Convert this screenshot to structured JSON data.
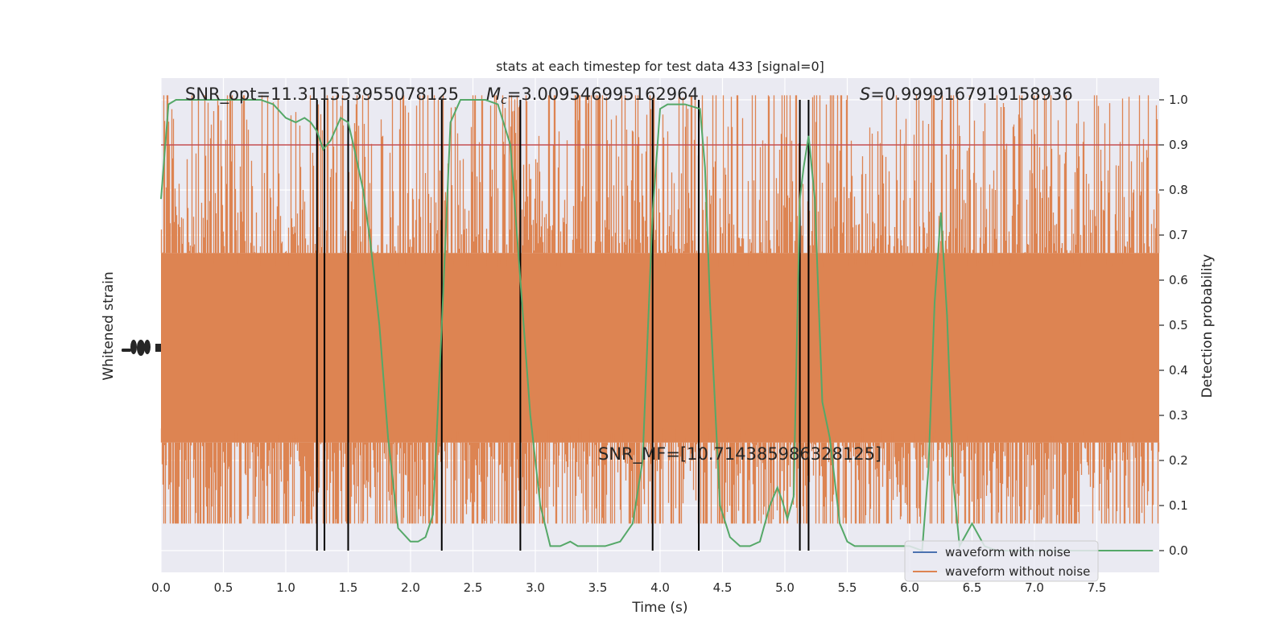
{
  "chart_data": {
    "type": "line",
    "title": "stats at each timestep for test data 433 [signal=0]",
    "xlabel": "Time (s)",
    "ylabel_left": "Whitened strain",
    "ylabel_right": "Detection probability",
    "xlim": [
      0.0,
      8.0
    ],
    "ylim_right": [
      -0.05,
      1.05
    ],
    "grid": true,
    "background": "#EAEAF2",
    "x_ticks": [
      "0.0",
      "0.5",
      "1.0",
      "1.5",
      "2.0",
      "2.5",
      "3.0",
      "3.5",
      "4.0",
      "4.5",
      "5.0",
      "5.5",
      "6.0",
      "6.5",
      "7.0",
      "7.5"
    ],
    "y_ticks_right": [
      "0.0",
      "0.1",
      "0.2",
      "0.3",
      "0.4",
      "0.5",
      "0.6",
      "0.7",
      "0.8",
      "0.9",
      "1.0"
    ],
    "annotations": {
      "snr_opt": "SNR_opt=11.311553955078125",
      "mc_symbol": "M",
      "mc_sub": "c",
      "mc_value": "=3.009546995162964",
      "s_symbol": "S",
      "s_value": "=0.9999167919158936",
      "snr_mf": "SNR_MF=[10.714385986328125]"
    },
    "threshold": {
      "value": 0.9,
      "color": "#C44E52"
    },
    "vertical_lines": [
      1.25,
      1.31,
      1.5,
      2.25,
      2.88,
      3.94,
      4.31,
      5.12,
      5.19
    ],
    "series": [
      {
        "name": "waveform with noise",
        "color": "#4C72B0"
      },
      {
        "name": "waveform without noise",
        "color": "#DD8452"
      }
    ],
    "strain_band": {
      "center": 0.45,
      "core_half_width": 0.21,
      "spike_min": 0.06,
      "spike_max": 1.01
    },
    "probability": {
      "color": "#55A868",
      "x": [
        0.0,
        0.06,
        0.12,
        0.2,
        0.3,
        0.5,
        0.8,
        0.9,
        1.0,
        1.08,
        1.15,
        1.2,
        1.25,
        1.3,
        1.36,
        1.44,
        1.5,
        1.55,
        1.62,
        1.68,
        1.75,
        1.82,
        1.9,
        2.0,
        2.06,
        2.12,
        2.18,
        2.25,
        2.32,
        2.4,
        2.5,
        2.6,
        2.7,
        2.8,
        2.88,
        2.96,
        3.04,
        3.12,
        3.2,
        3.28,
        3.34,
        3.45,
        3.56,
        3.68,
        3.78,
        3.86,
        3.94,
        4.0,
        4.06,
        4.2,
        4.32,
        4.36,
        4.4,
        4.48,
        4.56,
        4.64,
        4.72,
        4.8,
        4.88,
        4.94,
        4.98,
        5.02,
        5.07,
        5.12,
        5.15,
        5.19,
        5.24,
        5.3,
        5.36,
        5.44,
        5.5,
        5.56,
        5.62,
        5.7,
        5.8,
        5.9,
        6.0,
        6.1,
        6.15,
        6.2,
        6.25,
        6.3,
        6.35,
        6.4,
        6.5,
        6.6,
        6.7,
        6.8,
        6.9,
        7.0,
        7.2,
        7.4,
        7.6,
        7.8,
        7.95
      ],
      "y": [
        0.78,
        0.99,
        1.0,
        1.0,
        1.0,
        1.0,
        1.0,
        0.99,
        0.96,
        0.95,
        0.96,
        0.95,
        0.93,
        0.89,
        0.91,
        0.96,
        0.95,
        0.89,
        0.8,
        0.68,
        0.5,
        0.25,
        0.05,
        0.02,
        0.02,
        0.03,
        0.08,
        0.5,
        0.95,
        1.0,
        1.0,
        1.0,
        0.99,
        0.9,
        0.6,
        0.3,
        0.1,
        0.01,
        0.01,
        0.02,
        0.01,
        0.01,
        0.01,
        0.02,
        0.06,
        0.2,
        0.75,
        0.98,
        0.99,
        0.99,
        0.98,
        0.85,
        0.55,
        0.1,
        0.03,
        0.01,
        0.01,
        0.02,
        0.1,
        0.14,
        0.11,
        0.07,
        0.12,
        0.78,
        0.85,
        0.92,
        0.78,
        0.33,
        0.25,
        0.06,
        0.02,
        0.01,
        0.01,
        0.01,
        0.01,
        0.01,
        0.01,
        0.0,
        0.18,
        0.55,
        0.75,
        0.52,
        0.15,
        0.01,
        0.06,
        0.01,
        0.0,
        0.0,
        0.0,
        0.0,
        0.0,
        0.0,
        0.0,
        0.0,
        0.0
      ]
    }
  }
}
